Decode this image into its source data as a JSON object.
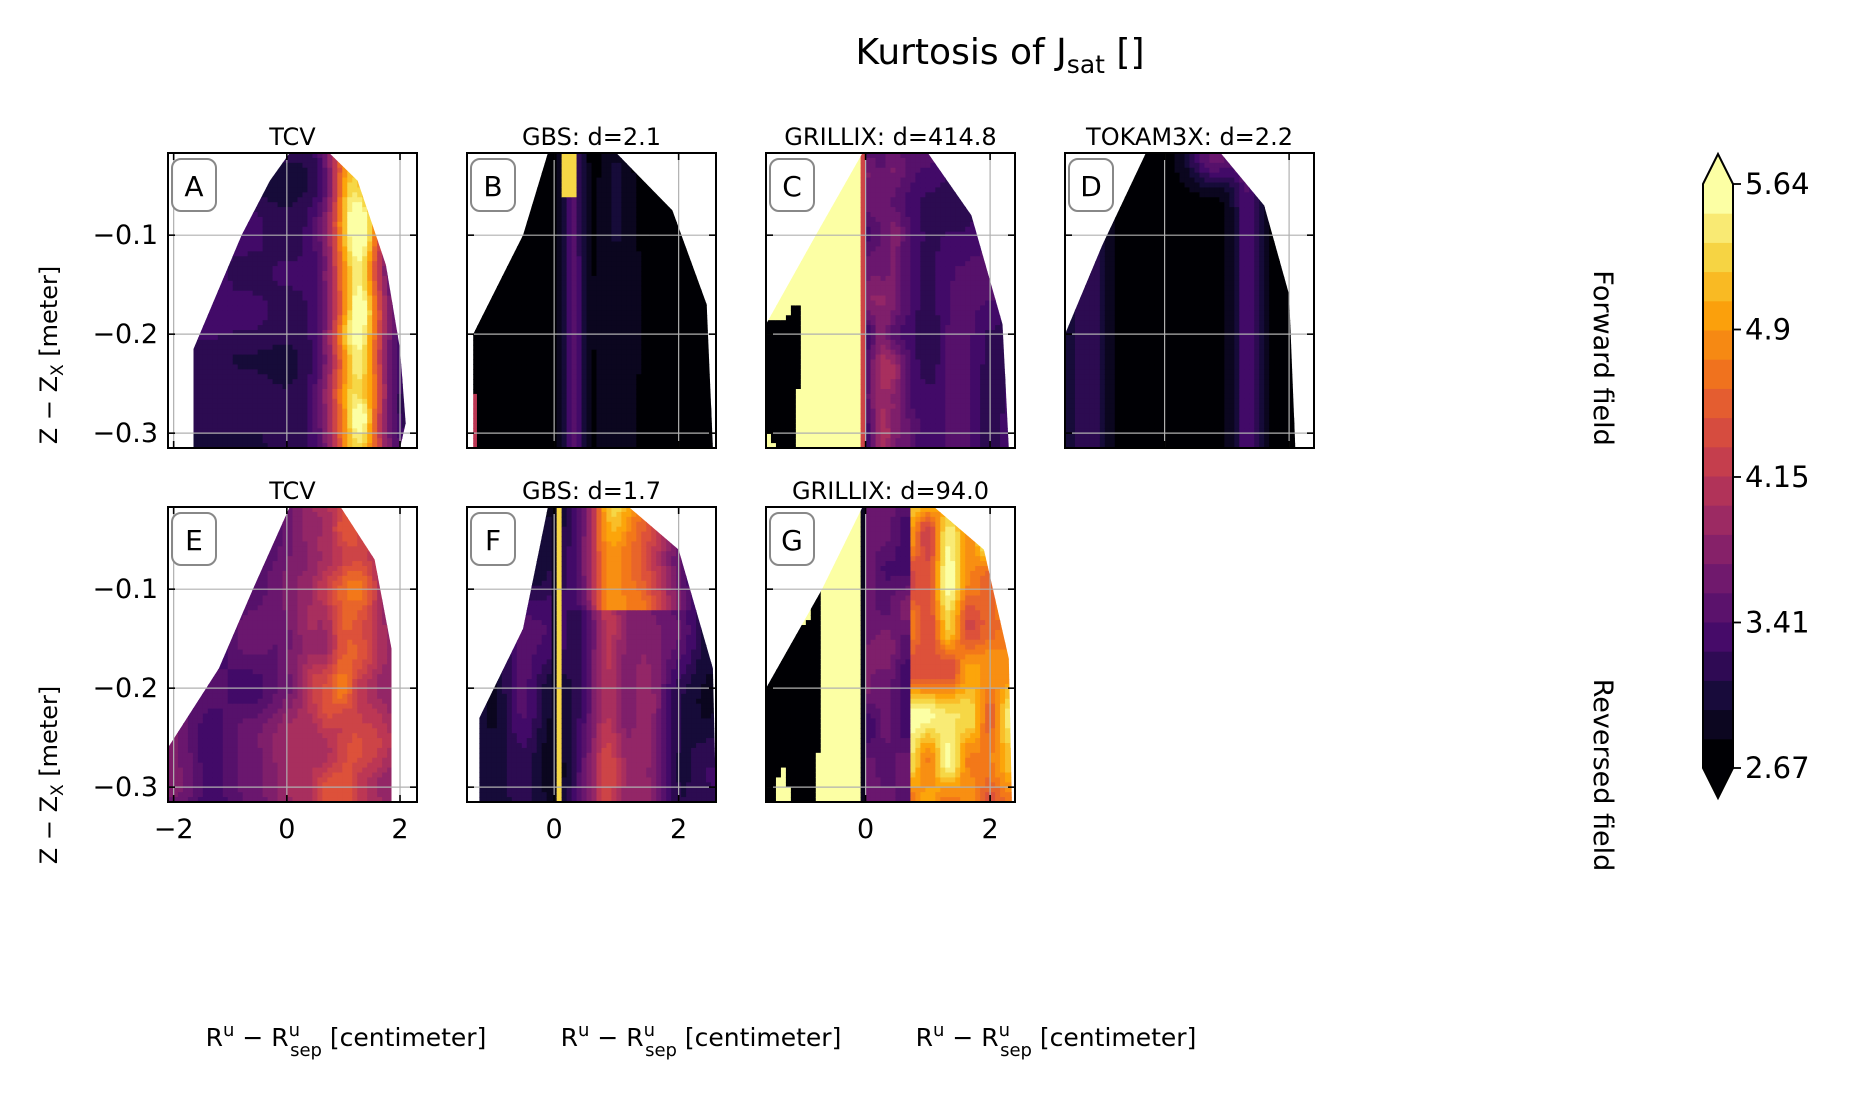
{
  "figure": {
    "title": "Kurtosis of J",
    "title_sub": "sat",
    "title_suffix": " []"
  },
  "rows": [
    {
      "label": "Forward field"
    },
    {
      "label": "Reversed field"
    }
  ],
  "axes_text": {
    "ylabel_main": "Z − Z",
    "ylabel_sub": "X",
    "ylabel_unit": " [meter]",
    "xlabel_main": "R",
    "xlabel_sup1": "u",
    "xlabel_minus": " − R",
    "xlabel_sup2": "u",
    "xlabel_sub2": "sep",
    "xlabel_unit": " [centimeter]"
  },
  "colorbar": {
    "colormap": "inferno",
    "min": 2.67,
    "max": 5.64,
    "levels": 20,
    "extend": "both",
    "ticks": [
      {
        "value": 2.67,
        "label": "2.67"
      },
      {
        "value": 3.41,
        "label": "3.41"
      },
      {
        "value": 4.15,
        "label": "4.15"
      },
      {
        "value": 4.9,
        "label": "4.9"
      },
      {
        "value": 5.64,
        "label": "5.64"
      }
    ]
  },
  "chart_data": [
    {
      "panel": "A",
      "title": "TCV",
      "row": 0,
      "type": "heatmap",
      "xlim": [
        -2.1,
        2.3
      ],
      "ylim": [
        -0.315,
        -0.017
      ],
      "xticks": [
        -2,
        0,
        2
      ],
      "yticks": [
        -0.1,
        -0.2,
        -0.3
      ],
      "grid": true,
      "pattern": "tcv_fwd"
    },
    {
      "panel": "B",
      "title": "GBS: d=2.1",
      "row": 0,
      "type": "heatmap",
      "xlim": [
        -1.4,
        2.6
      ],
      "ylim": [
        -0.315,
        -0.017
      ],
      "xticks": [
        0,
        2
      ],
      "yticks": [
        -0.1,
        -0.2,
        -0.3
      ],
      "grid": true,
      "pattern": "gbs_fwd"
    },
    {
      "panel": "C",
      "title": "GRILLIX: d=414.8",
      "row": 0,
      "type": "heatmap",
      "xlim": [
        -1.6,
        2.4
      ],
      "ylim": [
        -0.315,
        -0.017
      ],
      "xticks": [
        0,
        2
      ],
      "yticks": [
        -0.1,
        -0.2,
        -0.3
      ],
      "grid": true,
      "pattern": "grillix_fwd"
    },
    {
      "panel": "D",
      "title": "TOKAM3X: d=2.2",
      "row": 0,
      "type": "heatmap",
      "xlim": [
        -1.6,
        2.4
      ],
      "ylim": [
        -0.315,
        -0.017
      ],
      "xticks": [
        0,
        2
      ],
      "yticks": [
        -0.1,
        -0.2,
        -0.3
      ],
      "grid": true,
      "pattern": "tokam_fwd"
    },
    {
      "panel": "E",
      "title": "TCV",
      "row": 1,
      "type": "heatmap",
      "xlim": [
        -2.1,
        2.3
      ],
      "ylim": [
        -0.315,
        -0.017
      ],
      "xticks": [
        -2,
        0,
        2
      ],
      "yticks": [
        -0.1,
        -0.2,
        -0.3
      ],
      "grid": true,
      "pattern": "tcv_rev"
    },
    {
      "panel": "F",
      "title": "GBS: d=1.7",
      "row": 1,
      "type": "heatmap",
      "xlim": [
        -1.4,
        2.6
      ],
      "ylim": [
        -0.315,
        -0.017
      ],
      "xticks": [
        0,
        2
      ],
      "yticks": [
        -0.1,
        -0.2,
        -0.3
      ],
      "grid": true,
      "pattern": "gbs_rev"
    },
    {
      "panel": "G",
      "title": "GRILLIX: d=94.0",
      "row": 1,
      "type": "heatmap",
      "xlim": [
        -1.6,
        2.4
      ],
      "ylim": [
        -0.315,
        -0.017
      ],
      "xticks": [
        0,
        2
      ],
      "yticks": [
        -0.1,
        -0.2,
        -0.3
      ],
      "grid": true,
      "pattern": "grillix_rev"
    }
  ]
}
